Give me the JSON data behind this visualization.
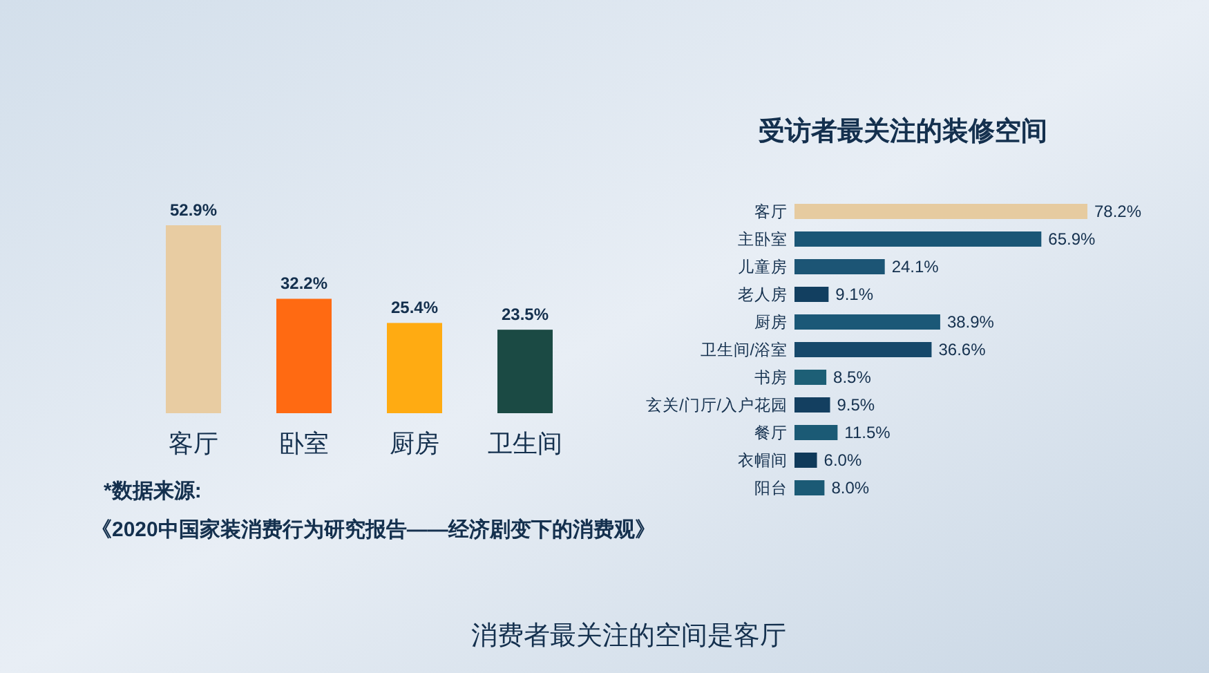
{
  "chart_data": [
    {
      "type": "bar",
      "categories": [
        "客厅",
        "卧室",
        "厨房",
        "卫生间"
      ],
      "values": [
        52.9,
        32.2,
        25.4,
        23.5
      ],
      "colors": [
        "#e8cca2",
        "#ff6a12",
        "#ffab12",
        "#1b4a44"
      ],
      "value_labels": [
        "52.9%",
        "32.2%",
        "25.4%",
        "23.5%"
      ],
      "annotations": [
        "*数据来源:",
        "《2020中国家装消费行为研究报告——经济剧变下的消费观》",
        "消费者最关注的空间是客厅"
      ]
    },
    {
      "type": "bar",
      "orientation": "horizontal",
      "title": "受访者最关注的装修空间",
      "categories": [
        "客厅",
        "主卧室",
        "儿童房",
        "老人房",
        "厨房",
        "卫生间/浴室",
        "书房",
        "玄关/门厅/入户花园",
        "餐厅",
        "衣帽间",
        "阳台"
      ],
      "values": [
        78.2,
        65.9,
        24.1,
        9.1,
        38.9,
        36.6,
        8.5,
        9.5,
        11.5,
        6.0,
        8.0
      ],
      "colors": [
        "#e6cba0",
        "#1a5676",
        "#1c5575",
        "#123f60",
        "#1b5877",
        "#16486a",
        "#1d5f76",
        "#133f60",
        "#1b5a75",
        "#0f3a5a",
        "#1b5a75"
      ],
      "value_labels": [
        "78.2%",
        "65.9%",
        "24.1%",
        "9.1%",
        "38.9%",
        "36.6%",
        "8.5%",
        "9.5%",
        "11.5%",
        "6.0%",
        "8.0%"
      ]
    }
  ]
}
